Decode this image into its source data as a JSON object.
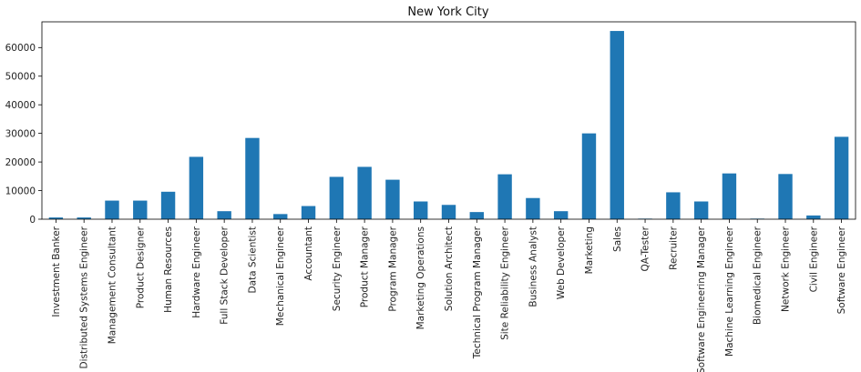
{
  "chart_data": {
    "type": "bar",
    "title": "New York City",
    "xlabel": "",
    "ylabel": "",
    "ylim": [
      0,
      68999
    ],
    "yticks": [
      0,
      10000,
      20000,
      30000,
      40000,
      50000,
      60000
    ],
    "ytick_labels": [
      "0",
      "10000",
      "20000",
      "30000",
      "40000",
      "50000",
      "60000"
    ],
    "grid": false,
    "legend": "none",
    "bar_color": "#1f77b4",
    "categories": [
      "Investment Banker",
      "Distributed Systems Engineer",
      "Management Consultant",
      "Product Designer",
      "Human Resources",
      "Hardware Engineer",
      "Full Stack Developer",
      "Data Scientist",
      "Mechanical Engineer",
      "Accountant",
      "Security Engineer",
      "Product Manager",
      "Program Manager",
      "Marketing Operations",
      "Solution Architect",
      "Technical Program Manager",
      "Site Reliability Engineer",
      "Business Analyst",
      "Web Developer",
      "Marketing",
      "Sales",
      "QA-Tester",
      "Recruiter",
      "Software Engineering Manager",
      "Machine Learning Engineer",
      "Biomedical Engineer",
      "Network Engineer",
      "Civil Engineer",
      "Software Engineer"
    ],
    "values": [
      600,
      600,
      6500,
      6500,
      9600,
      21800,
      2800,
      28400,
      1800,
      4600,
      14800,
      18300,
      13800,
      6200,
      5000,
      2500,
      15700,
      7400,
      2800,
      30000,
      65800,
      200,
      9400,
      6200,
      16000,
      200,
      15800,
      1300,
      28800
    ]
  }
}
